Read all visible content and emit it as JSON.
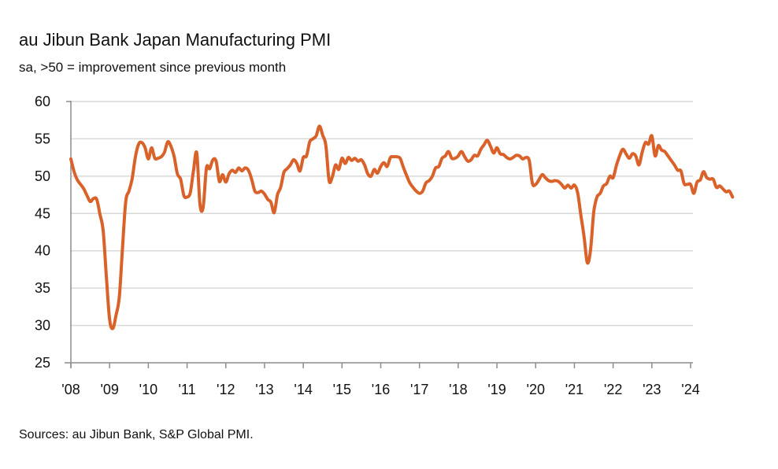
{
  "chart_data": {
    "type": "line",
    "title": "au Jibun Bank Japan Manufacturing PMI",
    "subtitle": "sa, >50 = improvement since previous month",
    "source": "Sources: au Jibun Bank, S&P Global PMI.",
    "xlabel": "",
    "ylabel": "",
    "ylim": [
      25,
      60
    ],
    "y_ticks": [
      "60",
      "55",
      "50",
      "45",
      "40",
      "35",
      "30",
      "25"
    ],
    "y_tick_values": [
      60,
      55,
      50,
      45,
      40,
      35,
      30,
      25
    ],
    "x_ticks": [
      "'08",
      "'09",
      "'10",
      "'11",
      "'12",
      "'13",
      "'14",
      "'15",
      "'16",
      "'17",
      "'18",
      "'19",
      "'20",
      "'21",
      "'22",
      "'23",
      "'24"
    ],
    "x_start": "2008-01",
    "frequency": "monthly",
    "grid": true,
    "legend": "none",
    "series": [
      {
        "name": "Manufacturing PMI",
        "color": "#D9622B",
        "values": [
          52.3,
          50.6,
          49.5,
          48.9,
          48.3,
          47.4,
          46.6,
          47.0,
          46.9,
          44.9,
          42.7,
          36.5,
          30.8,
          29.6,
          31.4,
          33.8,
          40.4,
          46.6,
          48.0,
          49.7,
          52.6,
          54.3,
          54.5,
          53.8,
          52.3,
          53.8,
          52.4,
          52.4,
          52.6,
          53.2,
          54.6,
          54.0,
          52.6,
          50.3,
          49.6,
          47.4,
          47.2,
          47.8,
          50.8,
          53.1,
          46.2,
          45.9,
          51.1,
          51.0,
          52.2,
          52.0,
          49.3,
          50.2,
          49.2,
          50.3,
          50.8,
          50.5,
          51.1,
          50.7,
          51.1,
          50.8,
          49.6,
          48.0,
          47.8,
          48.0,
          47.6,
          46.9,
          46.5,
          45.1,
          47.5,
          48.5,
          50.5,
          51.0,
          51.5,
          52.2,
          51.7,
          50.7,
          52.5,
          52.7,
          54.6,
          55.0,
          55.4,
          56.7,
          55.5,
          54.1,
          49.4,
          49.9,
          51.5,
          50.9,
          52.4,
          51.7,
          52.5,
          52.1,
          52.4,
          52.0,
          52.2,
          51.5,
          50.3,
          50.0,
          50.9,
          50.4,
          51.3,
          51.8,
          51.3,
          52.5,
          52.6,
          52.6,
          52.4,
          51.2,
          50.1,
          49.1,
          48.5,
          48.0,
          47.7,
          48.0,
          49.1,
          49.4,
          50.0,
          51.1,
          51.3,
          52.4,
          52.7,
          53.3,
          52.4,
          52.4,
          52.7,
          53.3,
          52.6,
          52.0,
          52.2,
          52.8,
          52.7,
          53.6,
          54.2,
          54.8,
          54.0,
          53.1,
          53.8,
          53.0,
          52.9,
          52.5,
          52.3,
          52.5,
          52.8,
          52.7,
          52.3,
          52.5,
          52.1,
          49.0,
          48.9,
          49.5,
          50.2,
          49.8,
          49.4,
          49.3,
          49.4,
          49.3,
          48.9,
          48.4,
          48.8,
          48.4,
          48.8,
          47.8,
          44.8,
          41.9,
          38.4,
          40.1,
          45.2,
          47.2,
          47.7,
          48.7,
          49.0,
          50.0,
          49.8,
          51.4,
          52.7,
          53.6,
          53.0,
          52.4,
          53.0,
          52.7,
          51.5,
          53.2,
          54.5,
          54.3,
          55.4,
          52.7,
          54.1,
          53.5,
          53.3,
          52.7,
          52.1,
          51.5,
          50.8,
          50.7,
          49.0,
          48.9,
          48.9,
          47.7,
          49.2,
          49.5,
          50.6,
          49.8,
          49.6,
          49.6,
          48.5,
          48.7,
          48.3,
          47.9,
          48.0,
          47.2
        ]
      }
    ]
  }
}
